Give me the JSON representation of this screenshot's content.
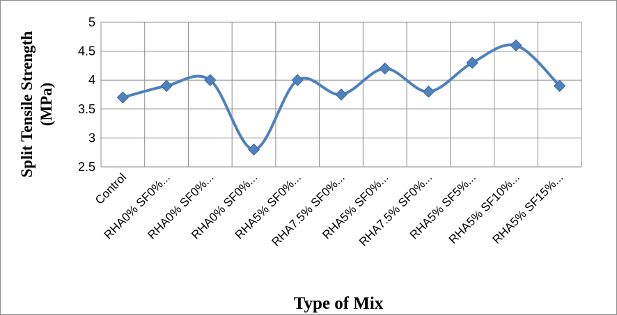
{
  "chart_data": {
    "type": "line",
    "title": "",
    "xlabel": "Type of Mix",
    "ylabel_lines": [
      "Split Tensile Strength",
      "(MPa)"
    ],
    "ylim": [
      2.5,
      5
    ],
    "yticks": [
      2.5,
      3,
      3.5,
      4,
      4.5,
      5
    ],
    "ytick_labels": [
      "2.5",
      "3",
      "3.5",
      "4",
      "4.5",
      "5"
    ],
    "grid": true,
    "legend": "none",
    "line_color": "#4f81bd",
    "categories": [
      "Control",
      "RHA0% SF0%...",
      "RHA0% SF0%...",
      "RHA0% SF0%...",
      "RHA5% SF0%...",
      "RHA7.5% SF0%...",
      "RHA5% SF0%...",
      "RHA7.5% SF0%...",
      "RHA5% SF5%...",
      "RHA5% SF10%...",
      "RHA5% SF15%..."
    ],
    "series": [
      {
        "values": [
          3.7,
          3.9,
          4.0,
          2.8,
          4.0,
          3.75,
          4.2,
          3.8,
          4.3,
          4.6,
          3.9
        ]
      }
    ]
  }
}
